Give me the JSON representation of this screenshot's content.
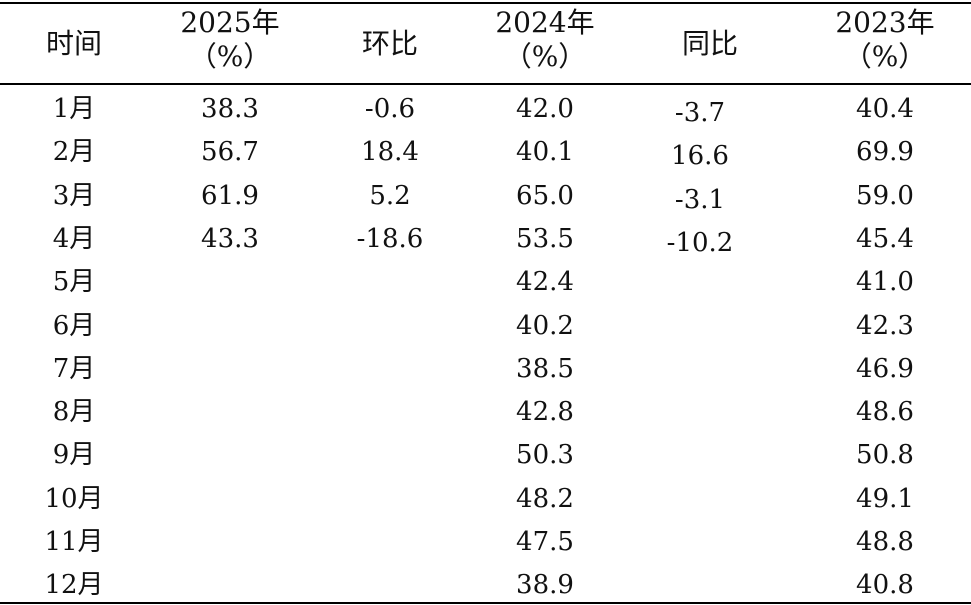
{
  "columns": [
    {
      "key": "month",
      "line1": "时间",
      "line2": ""
    },
    {
      "key": "y2025",
      "line1": "2025年",
      "line2": "（%）"
    },
    {
      "key": "mom",
      "line1": "环比",
      "line2": ""
    },
    {
      "key": "y2024",
      "line1": "2024年",
      "line2": "（%）"
    },
    {
      "key": "yoy",
      "line1": "同比",
      "line2": ""
    },
    {
      "key": "y2023",
      "line1": "2023年",
      "line2": "（%）"
    }
  ],
  "rows": [
    {
      "month": "1月",
      "y2025": "38.3",
      "mom": "-0.6",
      "y2024": "42.0",
      "yoy": "-3.7",
      "y2023": "40.4"
    },
    {
      "month": "2月",
      "y2025": "56.7",
      "mom": "18.4",
      "y2024": "40.1",
      "yoy": "16.6",
      "y2023": "69.9"
    },
    {
      "month": "3月",
      "y2025": "61.9",
      "mom": "5.2",
      "y2024": "65.0",
      "yoy": "-3.1",
      "y2023": "59.0"
    },
    {
      "month": "4月",
      "y2025": "43.3",
      "mom": "-18.6",
      "y2024": "53.5",
      "yoy": "-10.2",
      "y2023": "45.4"
    },
    {
      "month": "5月",
      "y2025": "",
      "mom": "",
      "y2024": "42.4",
      "yoy": "",
      "y2023": "41.0"
    },
    {
      "month": "6月",
      "y2025": "",
      "mom": "",
      "y2024": "40.2",
      "yoy": "",
      "y2023": "42.3"
    },
    {
      "month": "7月",
      "y2025": "",
      "mom": "",
      "y2024": "38.5",
      "yoy": "",
      "y2023": "46.9"
    },
    {
      "month": "8月",
      "y2025": "",
      "mom": "",
      "y2024": "42.8",
      "yoy": "",
      "y2023": "48.6"
    },
    {
      "month": "9月",
      "y2025": "",
      "mom": "",
      "y2024": "50.3",
      "yoy": "",
      "y2023": "50.8"
    },
    {
      "month": "10月",
      "y2025": "",
      "mom": "",
      "y2024": "48.2",
      "yoy": "",
      "y2023": "49.1"
    },
    {
      "month": "11月",
      "y2025": "",
      "mom": "",
      "y2024": "47.5",
      "yoy": "",
      "y2023": "48.8"
    },
    {
      "month": "12月",
      "y2025": "",
      "mom": "",
      "y2024": "38.9",
      "yoy": "",
      "y2023": "40.8"
    }
  ]
}
